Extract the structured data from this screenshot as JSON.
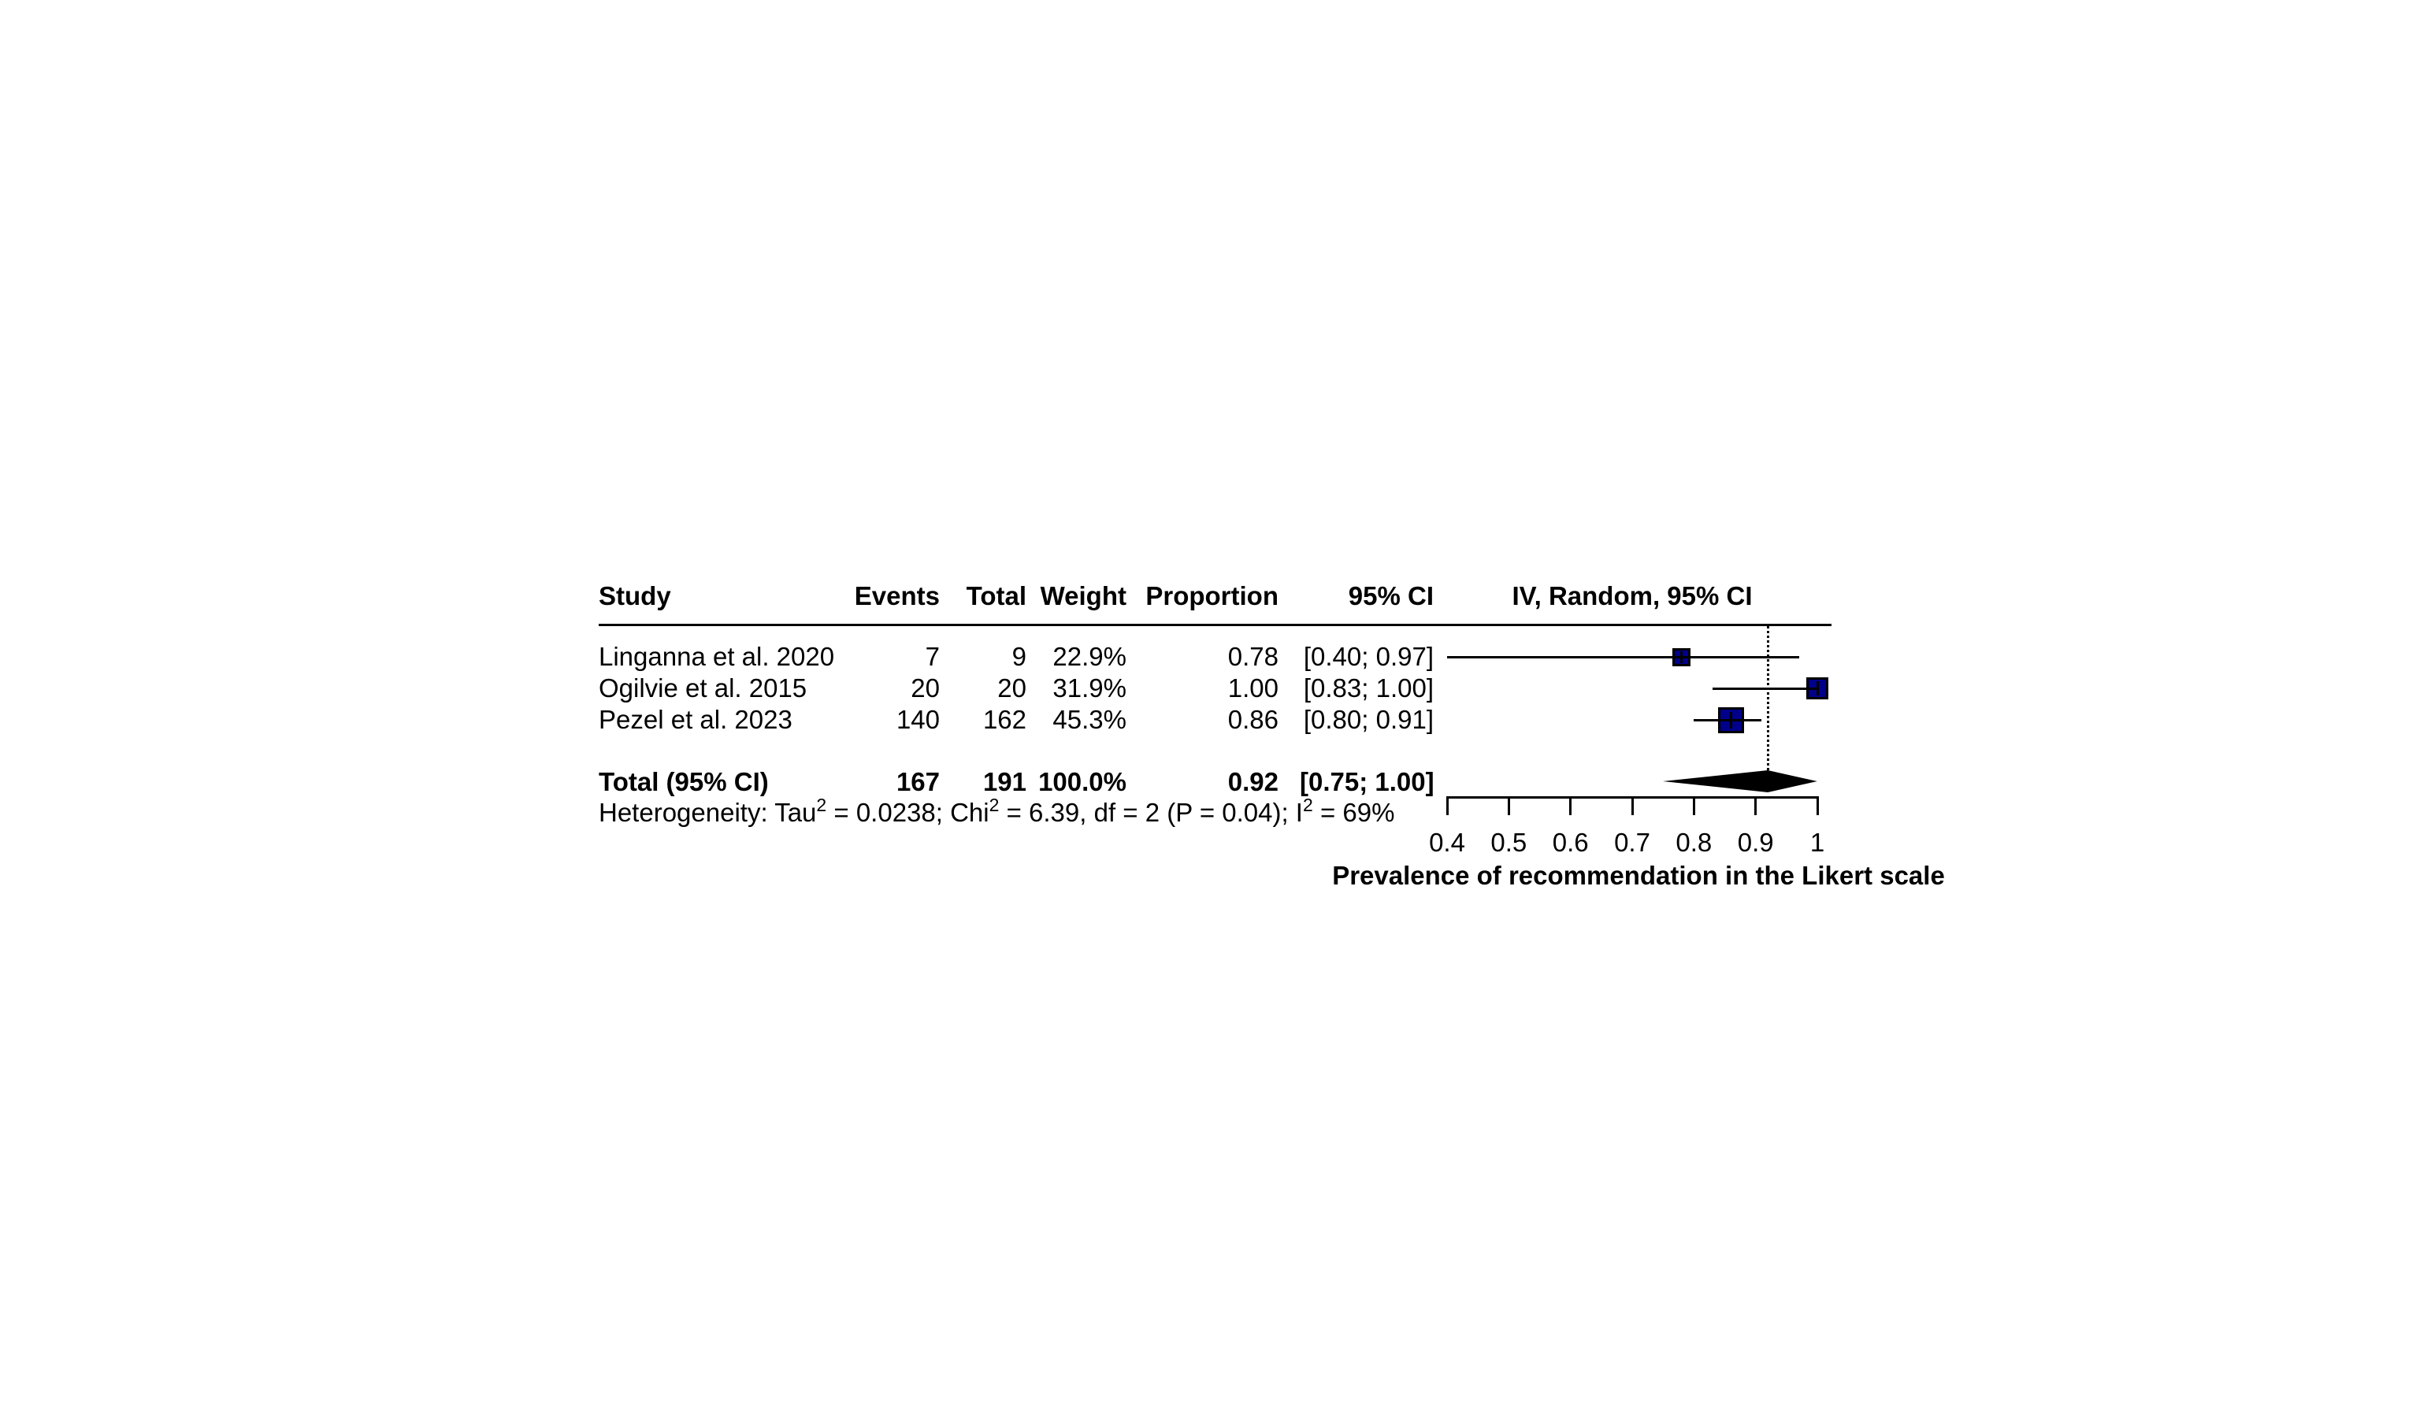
{
  "table": {
    "headers": {
      "study": "Study",
      "events": "Events",
      "total": "Total",
      "weight": "Weight",
      "proportion": "Proportion",
      "ci": "95% CI",
      "plot": "IV, Random, 95% CI"
    }
  },
  "chart_data": {
    "type": "forest",
    "xlabel": "Prevalence of recommendation in the Likert scale",
    "xlim": [
      0.4,
      1.0
    ],
    "x_ticks": [
      0.4,
      0.5,
      0.6,
      0.7,
      0.8,
      0.9,
      1
    ],
    "x_tick_labels": [
      "0.4",
      "0.5",
      "0.6",
      "0.7",
      "0.8",
      "0.9",
      "1"
    ],
    "grid": false,
    "studies": [
      {
        "name": "Linganna et al. 2020",
        "events": "7",
        "total": "9",
        "weight": "22.9%",
        "proportion": "0.78",
        "ci_text": "[0.40; 0.97]",
        "est": 0.78,
        "lo": 0.4,
        "hi": 0.97,
        "marker_size": 23
      },
      {
        "name": "Ogilvie et al. 2015",
        "events": "20",
        "total": "20",
        "weight": "31.9%",
        "proportion": "1.00",
        "ci_text": "[0.83; 1.00]",
        "est": 1.0,
        "lo": 0.83,
        "hi": 1.0,
        "marker_size": 28
      },
      {
        "name": "Pezel et al. 2023",
        "events": "140",
        "total": "162",
        "weight": "45.3%",
        "proportion": "0.86",
        "ci_text": "[0.80; 0.91]",
        "est": 0.86,
        "lo": 0.8,
        "hi": 0.91,
        "marker_size": 33
      }
    ],
    "total": {
      "label": "Total (95% CI)",
      "events": "167",
      "total": "191",
      "weight": "100.0%",
      "proportion": "0.92",
      "ci_text": "[0.75; 1.00]",
      "est": 0.92,
      "lo": 0.75,
      "hi": 1.0
    },
    "reference_line": 0.92,
    "heterogeneity": {
      "prefix": "Heterogeneity: Tau",
      "sup1": "2",
      "mid1": " = 0.0238; Chi",
      "sup2": "2",
      "mid2": " = 6.39, df = 2 (P = 0.04); I",
      "sup3": "2",
      "suffix": " = 69%"
    },
    "colors": {
      "marker_fill": "#00008B",
      "marker_border": "#000000",
      "line": "#000000",
      "diamond": "#000000",
      "text": "#000000",
      "background": "#ffffff"
    }
  }
}
